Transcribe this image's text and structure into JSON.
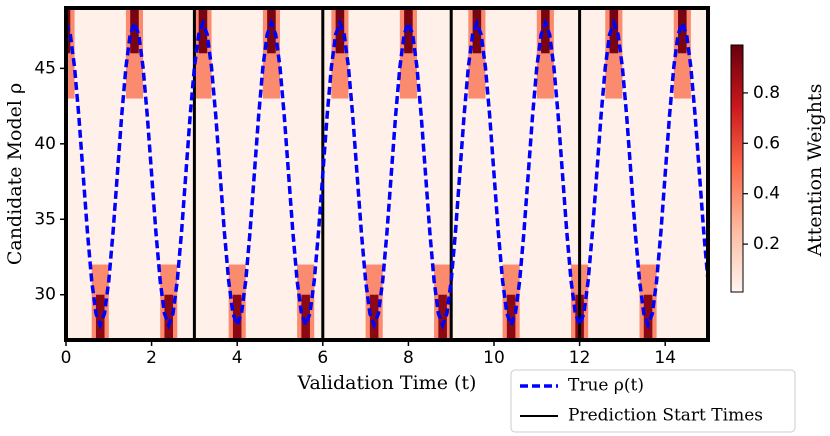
{
  "chart_data": {
    "type": "heatmap-line",
    "xlabel": "Validation Time (t)",
    "ylabel": "Candidate Model ρ",
    "xlim": [
      0,
      15
    ],
    "ylim": [
      27,
      49
    ],
    "xticks": [
      0,
      2,
      4,
      6,
      8,
      10,
      12,
      14
    ],
    "yticks": [
      30,
      35,
      40,
      45
    ],
    "colorbar": {
      "label": "Attention Weights",
      "clim": [
        0.01,
        0.99
      ],
      "ticks": [
        0.2,
        0.4,
        0.6,
        0.8
      ],
      "colormap": [
        "#fff5f0",
        "#fcbba1",
        "#fb6a4a",
        "#cb181d",
        "#67000d"
      ]
    },
    "background_weight": 0.03,
    "cells": [
      [
        0,
        0.2,
        43,
        49,
        0.4
      ],
      [
        0,
        0.1,
        46,
        49,
        0.95
      ],
      [
        1.4,
        1.8,
        43,
        49,
        0.4
      ],
      [
        1.5,
        1.7,
        46,
        49,
        0.95
      ],
      [
        3.0,
        3.4,
        43,
        49,
        0.4
      ],
      [
        3.1,
        3.3,
        46,
        49,
        0.95
      ],
      [
        4.6,
        5.0,
        43,
        49,
        0.4
      ],
      [
        4.7,
        4.9,
        46,
        49,
        0.95
      ],
      [
        6.2,
        6.6,
        43,
        49,
        0.4
      ],
      [
        6.3,
        6.5,
        46,
        49,
        0.95
      ],
      [
        7.8,
        8.2,
        43,
        49,
        0.4
      ],
      [
        7.9,
        8.1,
        46,
        49,
        0.95
      ],
      [
        9.4,
        9.8,
        43,
        49,
        0.4
      ],
      [
        9.5,
        9.7,
        46,
        49,
        0.95
      ],
      [
        11.0,
        11.4,
        43,
        49,
        0.4
      ],
      [
        11.1,
        11.3,
        46,
        49,
        0.95
      ],
      [
        12.6,
        13.0,
        43,
        49,
        0.4
      ],
      [
        12.7,
        12.9,
        46,
        49,
        0.95
      ],
      [
        14.2,
        14.6,
        43,
        49,
        0.4
      ],
      [
        14.3,
        14.5,
        46,
        49,
        0.95
      ],
      [
        0.6,
        1.0,
        27,
        32,
        0.4
      ],
      [
        0.7,
        0.9,
        27,
        30,
        0.9
      ],
      [
        2.2,
        2.6,
        27,
        32,
        0.4
      ],
      [
        2.3,
        2.5,
        27,
        30,
        0.9
      ],
      [
        3.8,
        4.2,
        27,
        32,
        0.4
      ],
      [
        3.9,
        4.1,
        27,
        30,
        0.9
      ],
      [
        5.4,
        5.8,
        27,
        32,
        0.4
      ],
      [
        5.5,
        5.7,
        27,
        30,
        0.9
      ],
      [
        7.0,
        7.4,
        27,
        32,
        0.4
      ],
      [
        7.1,
        7.3,
        27,
        30,
        0.9
      ],
      [
        8.6,
        9.0,
        27,
        32,
        0.4
      ],
      [
        8.7,
        8.9,
        27,
        30,
        0.9
      ],
      [
        10.2,
        10.6,
        27,
        32,
        0.4
      ],
      [
        10.3,
        10.5,
        27,
        30,
        0.9
      ],
      [
        11.8,
        12.2,
        27,
        32,
        0.4
      ],
      [
        11.9,
        12.1,
        27,
        30,
        0.9
      ],
      [
        13.4,
        13.8,
        27,
        32,
        0.4
      ],
      [
        13.5,
        13.7,
        27,
        30,
        0.9
      ]
    ],
    "series": [
      {
        "name": "True ρ(t)",
        "color": "#0000ff",
        "x": [
          0,
          0.1,
          0.2,
          0.3,
          0.4,
          0.5,
          0.6,
          0.7,
          0.8,
          0.9,
          1,
          1.1,
          1.2,
          1.3,
          1.4,
          1.5,
          1.6,
          1.7,
          1.8,
          1.9,
          2,
          2.1,
          2.2,
          2.3,
          2.4,
          2.5,
          2.6,
          2.7,
          2.8,
          2.9,
          3,
          3.1,
          3.2,
          3.3,
          3.4,
          3.5,
          3.6,
          3.7,
          3.8,
          3.9,
          4,
          4.1,
          4.2,
          4.3,
          4.4,
          4.5,
          4.6,
          4.7,
          4.8,
          4.9,
          5,
          5.1,
          5.2,
          5.3,
          5.4,
          5.5,
          5.6,
          5.7,
          5.8,
          5.9,
          6,
          6.1,
          6.2,
          6.3,
          6.4,
          6.5,
          6.6,
          6.7,
          6.8,
          6.9,
          7,
          7.1,
          7.2,
          7.3,
          7.4,
          7.5,
          7.6,
          7.7,
          7.8,
          7.9,
          8,
          8.1,
          8.2,
          8.3,
          8.4,
          8.5,
          8.6,
          8.7,
          8.8,
          8.9,
          9,
          9.1,
          9.2,
          9.3,
          9.4,
          9.5,
          9.6,
          9.7,
          9.8,
          9.9,
          10,
          10.1,
          10.2,
          10.3,
          10.4,
          10.5,
          10.6,
          10.7,
          10.8,
          10.9,
          11,
          11.1,
          11.2,
          11.3,
          11.4,
          11.5,
          11.6,
          11.7,
          11.8,
          11.9,
          12,
          12.1,
          12.2,
          12.3,
          12.4,
          12.5,
          12.6,
          12.7,
          12.8,
          12.9,
          13,
          13.1,
          13.2,
          13.3,
          13.4,
          13.5,
          13.6,
          13.7,
          13.8,
          13.9,
          14,
          14.1,
          14.2,
          14.3,
          14.4,
          14.5,
          14.6,
          14.7,
          14.8,
          14.9,
          15
        ],
        "values": [
          48,
          47.24,
          45.07,
          41.83,
          38,
          34.17,
          30.93,
          28.76,
          28,
          28.76,
          30.93,
          34.17,
          38,
          41.83,
          45.07,
          47.24,
          48,
          47.24,
          45.07,
          41.83,
          38,
          34.17,
          30.93,
          28.76,
          28,
          28.76,
          30.93,
          34.17,
          38,
          41.83,
          45.07,
          47.24,
          48,
          47.24,
          45.07,
          41.83,
          38,
          34.17,
          30.93,
          28.76,
          28,
          28.76,
          30.93,
          34.17,
          38,
          41.83,
          45.07,
          47.24,
          48,
          47.24,
          45.07,
          41.83,
          38,
          34.17,
          30.93,
          28.76,
          28,
          28.76,
          30.93,
          34.17,
          38,
          41.83,
          45.07,
          47.24,
          48,
          47.24,
          45.07,
          41.83,
          38,
          34.17,
          30.93,
          28.76,
          28,
          28.76,
          30.93,
          34.17,
          38,
          41.83,
          45.07,
          47.24,
          48,
          47.24,
          45.07,
          41.83,
          38,
          34.17,
          30.93,
          28.76,
          28,
          28.76,
          30.93,
          34.17,
          38,
          41.83,
          45.07,
          47.24,
          48,
          47.24,
          45.07,
          41.83,
          38,
          34.17,
          30.93,
          28.76,
          28,
          28.76,
          30.93,
          34.17,
          38,
          41.83,
          45.07,
          47.24,
          48,
          47.24,
          45.07,
          41.83,
          38,
          34.17,
          30.93,
          28.76,
          28,
          28.76,
          30.93,
          34.17,
          38,
          41.83,
          45.07,
          47.24,
          48,
          47.24,
          45.07,
          41.83,
          38,
          34.17,
          30.93,
          28.76,
          28,
          28.76,
          30.93,
          34.17,
          38,
          41.83,
          45.07,
          47.24,
          48,
          47.24,
          45.07,
          41.83,
          38,
          34.17,
          30.93
        ]
      }
    ],
    "vlines": {
      "name": "Prediction Start Times",
      "color": "#000000",
      "x": [
        3,
        6,
        9,
        12
      ]
    }
  }
}
